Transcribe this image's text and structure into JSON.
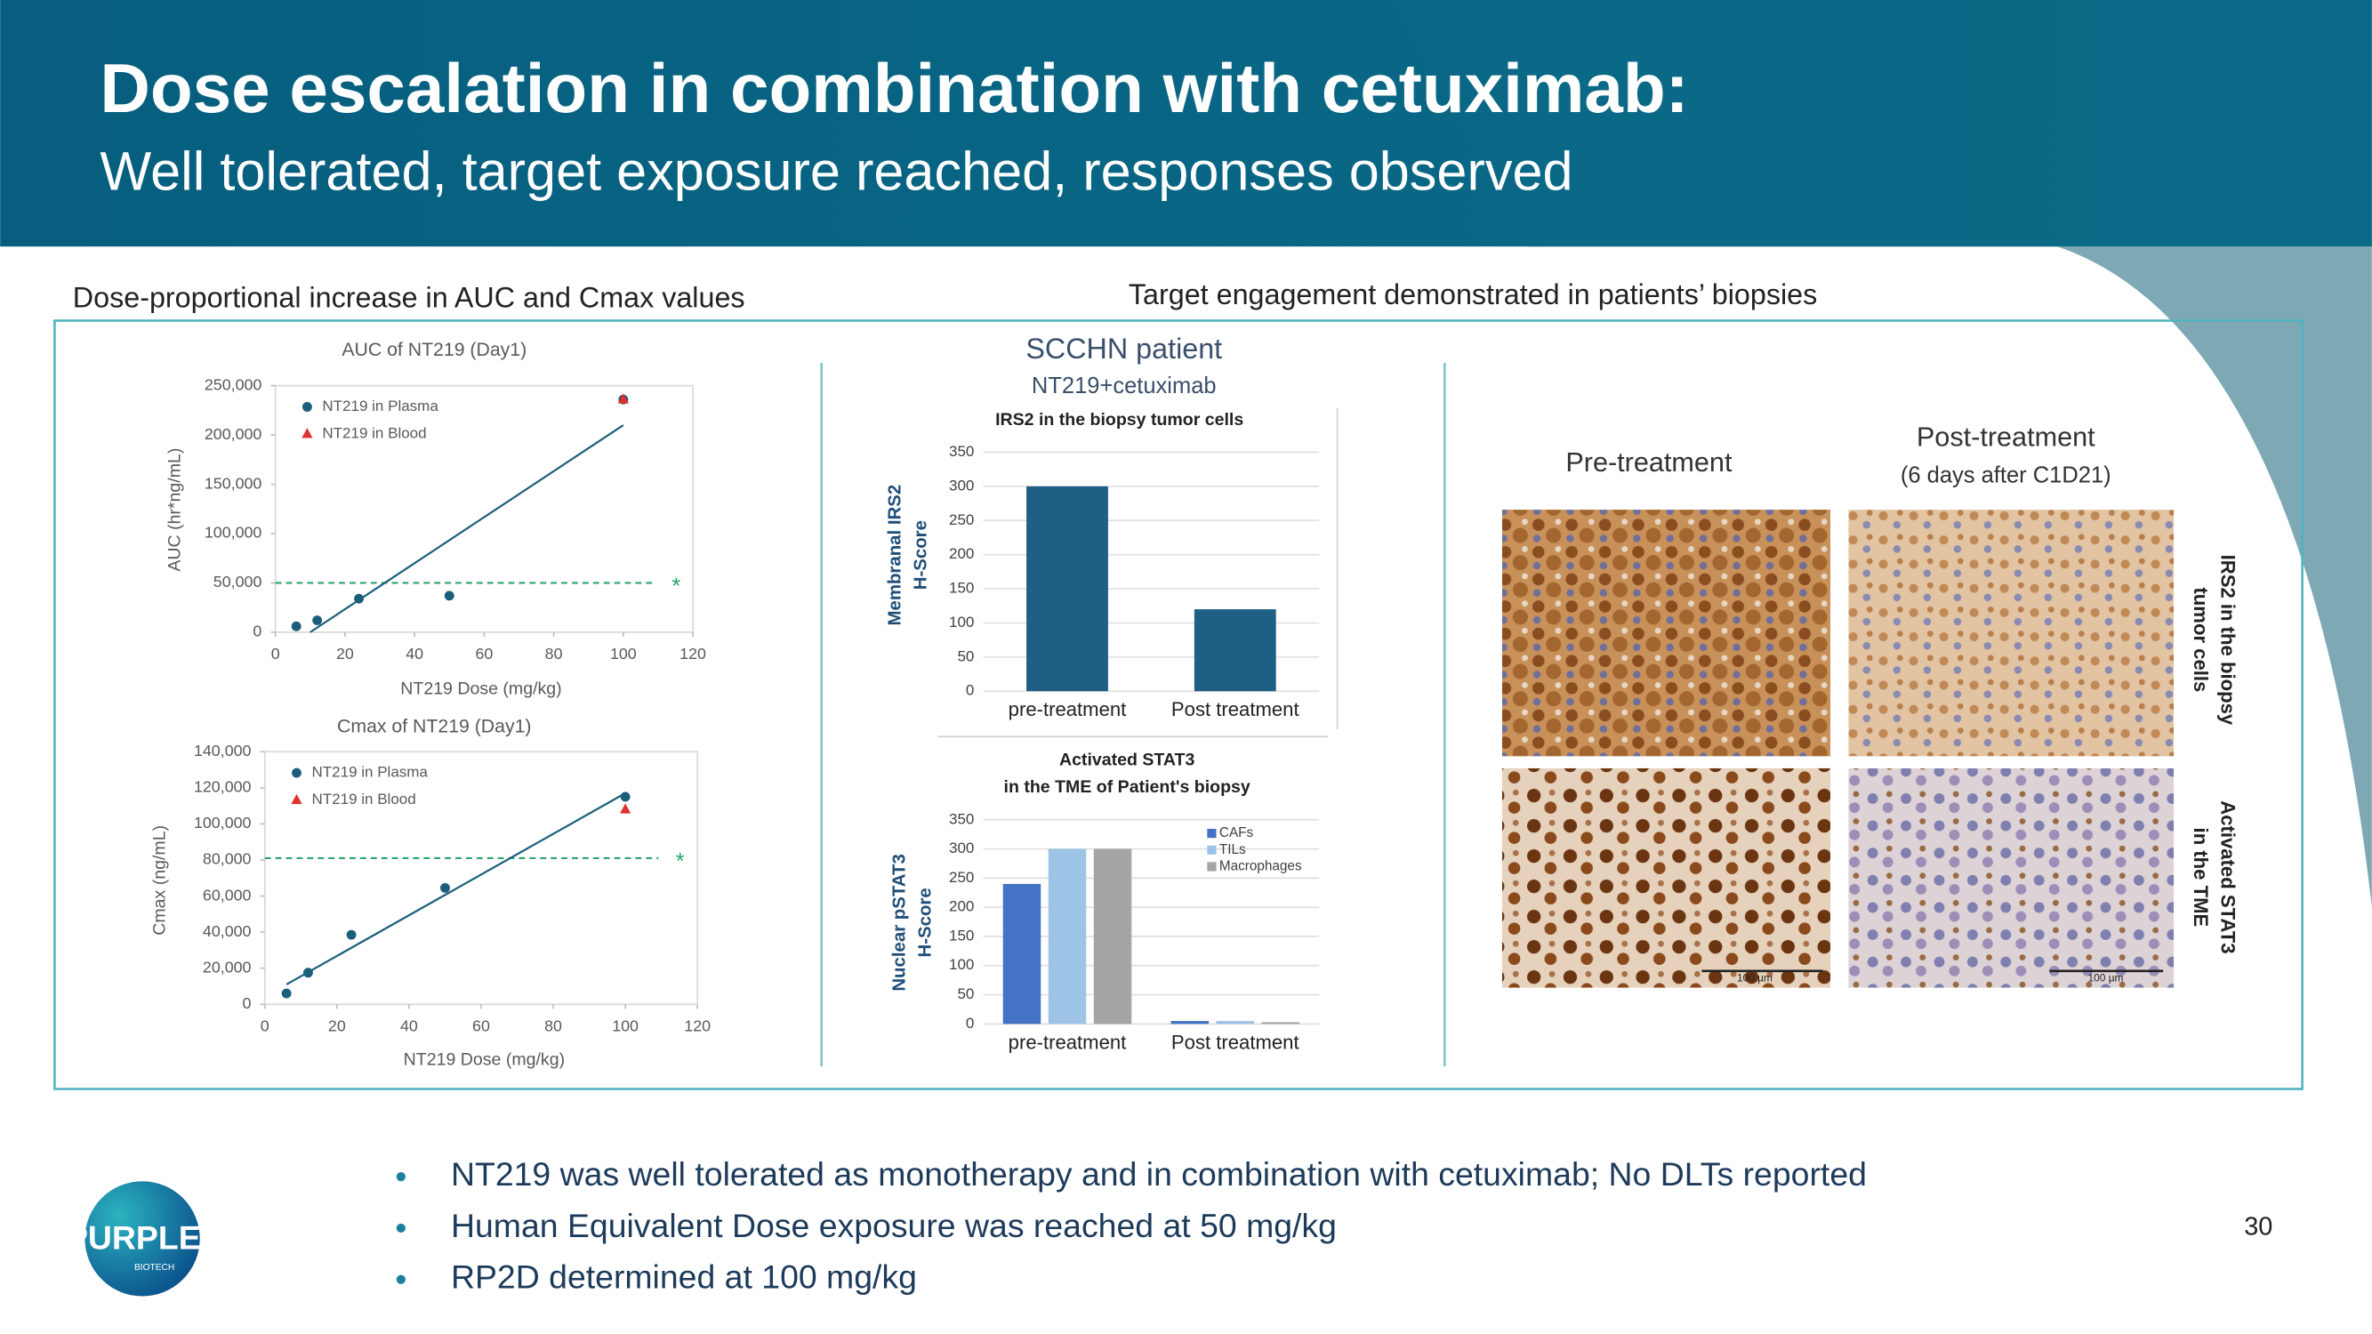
{
  "header": {
    "title": "Dose escalation in combination with cetuximab:",
    "subtitle": "Well tolerated, target exposure reached, responses observed"
  },
  "left_heading": "Dose-proportional increase in AUC and Cmax values",
  "right_heading": "Target engagement demonstrated in patients’ biopsies",
  "patient": {
    "title": "SCCHN patient",
    "subtitle": "NT219+cetuximab"
  },
  "biopsy": {
    "pre": "Pre-treatment",
    "post": "Post-treatment",
    "post_note": "(6 days after C1D21)",
    "row_labels": [
      [
        "IRS2 in the biopsy",
        "tumor cells"
      ],
      [
        "Activated STAT3",
        "in the TME"
      ]
    ],
    "scale_bar": "100 µm"
  },
  "bullets": [
    "NT219 was well tolerated as monotherapy and in combination with cetuximab; No DLTs reported",
    "Human Equivalent Dose exposure was reached at 50 mg/kg",
    "RP2D determined at 100 mg/kg"
  ],
  "page_number": "30",
  "logo": {
    "name": "PURPLE",
    "tagline": "BIOTECH"
  },
  "chart_data": [
    {
      "type": "scatter",
      "title": "AUC of NT219 (Day1)",
      "xlabel": "NT219 Dose (mg/kg)",
      "ylabel": "AUC (hr*ng/mL)",
      "xlim": [
        0,
        120
      ],
      "xticks": [
        0,
        20,
        40,
        60,
        80,
        100,
        120
      ],
      "ylim": [
        0,
        250000
      ],
      "yticks": [
        0,
        {
          "value": 50000,
          "label": "50,000"
        },
        {
          "value": 100000,
          "label": "100,000"
        },
        {
          "value": 150000,
          "label": "150,000"
        },
        {
          "value": 200000,
          "label": "200,000"
        },
        {
          "value": 250000,
          "label": "250,000"
        }
      ],
      "legend": "upper left",
      "series": [
        {
          "name": "NT219 in Plasma",
          "color": "#1b5e7b",
          "marker": "circle",
          "x": [
            6,
            12,
            24,
            50,
            100
          ],
          "values": [
            6000,
            12000,
            34000,
            37000,
            236000
          ]
        },
        {
          "name": "NT219 in Blood",
          "color": "#e0302f",
          "marker": "triangle",
          "x": [
            100
          ],
          "values": [
            236000
          ]
        }
      ],
      "trendline": {
        "color": "#1b5e7b",
        "x": [
          10,
          100
        ],
        "values": [
          0,
          210000
        ]
      },
      "reference_line": {
        "value": 50000,
        "label": "*",
        "color": "#2ea36b"
      }
    },
    {
      "type": "scatter",
      "title": "Cmax of NT219 (Day1)",
      "xlabel": "NT219 Dose (mg/kg)",
      "ylabel": "Cmax (ng/mL)",
      "xlim": [
        0,
        120
      ],
      "xticks": [
        0,
        20,
        40,
        60,
        80,
        100,
        120
      ],
      "ylim": [
        0,
        140000
      ],
      "yticks": [
        0,
        {
          "value": 20000,
          "label": "20,000"
        },
        {
          "value": 40000,
          "label": "40,000"
        },
        {
          "value": 60000,
          "label": "60,000"
        },
        {
          "value": 80000,
          "label": "80,000"
        },
        {
          "value": 100000,
          "label": "100,000"
        },
        {
          "value": 120000,
          "label": "120,000"
        },
        {
          "value": 140000,
          "label": "140,000"
        }
      ],
      "legend": "upper left",
      "series": [
        {
          "name": "NT219 in Plasma",
          "color": "#1b5e7b",
          "marker": "circle",
          "x": [
            6,
            12,
            24,
            50,
            100
          ],
          "values": [
            6000,
            17500,
            38500,
            64500,
            115000
          ]
        },
        {
          "name": "NT219 in Blood",
          "color": "#e0302f",
          "marker": "triangle",
          "x": [
            100
          ],
          "values": [
            108000
          ]
        }
      ],
      "trendline": {
        "color": "#1b5e7b",
        "x": [
          6,
          100
        ],
        "values": [
          11000,
          117000
        ]
      },
      "reference_line": {
        "value": 81000,
        "label": "*",
        "color": "#2ea36b"
      }
    },
    {
      "type": "bar",
      "title": [
        "IRS2 in the biopsy tumor cells"
      ],
      "ylabel": [
        "Membranal IRS2",
        "H-Score"
      ],
      "categories": [
        "pre-treatment",
        "Post treatment"
      ],
      "values": [
        300,
        120
      ],
      "color": "#1f5f86",
      "ylim": [
        0,
        350
      ],
      "yticks": [
        0,
        50,
        100,
        150,
        200,
        250,
        300,
        350
      ],
      "grid": true
    },
    {
      "type": "bar",
      "title": [
        "Activated STAT3",
        "in the TME of Patient's biopsy"
      ],
      "ylabel": [
        "Nuclear pSTAT3",
        "H-Score"
      ],
      "categories": [
        "pre-treatment",
        "Post treatment"
      ],
      "legend": "upper right",
      "series": [
        {
          "name": "CAFs",
          "color": "#4472c4",
          "values": [
            240,
            5
          ]
        },
        {
          "name": "TILs",
          "color": "#9dc3e6",
          "values": [
            300,
            5
          ]
        },
        {
          "name": "Macrophages",
          "color": "#a5a5a5",
          "values": [
            300,
            3
          ]
        }
      ],
      "ylim": [
        0,
        350
      ],
      "yticks": [
        0,
        50,
        100,
        150,
        200,
        250,
        300,
        350
      ],
      "grid": true
    }
  ]
}
